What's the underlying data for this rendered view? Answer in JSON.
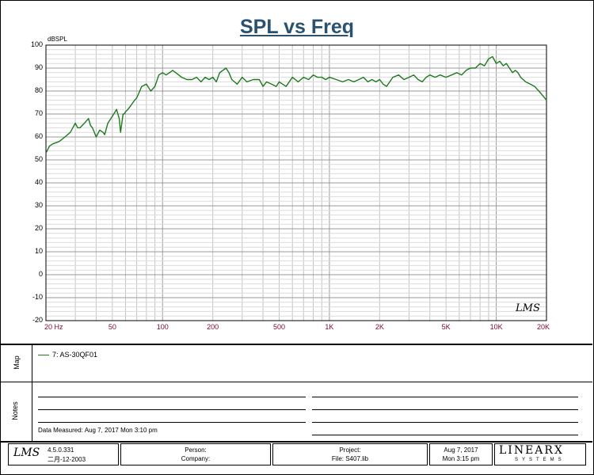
{
  "title": "SPL vs Freq",
  "watermark": "LMS",
  "chart_data": {
    "type": "line",
    "ylabel": "dBSPL",
    "xscale": "log",
    "xlim": [
      20,
      20000
    ],
    "ylim": [
      -20,
      100
    ],
    "yticks": [
      100,
      90,
      80,
      70,
      60,
      50,
      40,
      30,
      20,
      10,
      0,
      -10,
      -20
    ],
    "xticks": [
      {
        "value": 20,
        "label": "20  Hz"
      },
      {
        "value": 50,
        "label": "50"
      },
      {
        "value": 100,
        "label": "100"
      },
      {
        "value": 200,
        "label": "200"
      },
      {
        "value": 500,
        "label": "500"
      },
      {
        "value": 1000,
        "label": "1K"
      },
      {
        "value": 2000,
        "label": "2K"
      },
      {
        "value": 5000,
        "label": "5K"
      },
      {
        "value": 10000,
        "label": "10K"
      },
      {
        "value": 20000,
        "label": "20K"
      }
    ],
    "grid": true,
    "series": [
      {
        "name": "7: AS-30QF01",
        "color": "#1f7a1f",
        "x": [
          20,
          21,
          22,
          24,
          26,
          28,
          30,
          31,
          32,
          34,
          36,
          37,
          38,
          40,
          42,
          44,
          45,
          47,
          49,
          51,
          53,
          55,
          56,
          57,
          58,
          59,
          60,
          62,
          65,
          68,
          70,
          72,
          75,
          80,
          85,
          90,
          95,
          100,
          105,
          110,
          115,
          120,
          125,
          130,
          140,
          150,
          160,
          170,
          180,
          190,
          200,
          210,
          220,
          240,
          250,
          260,
          280,
          300,
          320,
          350,
          380,
          400,
          420,
          450,
          480,
          500,
          550,
          600,
          650,
          700,
          750,
          800,
          850,
          900,
          950,
          1000,
          1100,
          1200,
          1300,
          1400,
          1500,
          1600,
          1700,
          1800,
          1900,
          2000,
          2100,
          2200,
          2400,
          2600,
          2800,
          3000,
          3200,
          3400,
          3600,
          3800,
          4000,
          4300,
          4600,
          5000,
          5400,
          5800,
          6200,
          6600,
          7000,
          7500,
          8000,
          8500,
          9000,
          9500,
          10000,
          10500,
          11000,
          11500,
          12000,
          12500,
          13000,
          13500,
          14000,
          15000,
          16000,
          17000,
          18000,
          19000,
          20000
        ],
        "y": [
          53,
          56,
          57,
          58,
          60,
          62,
          66,
          64,
          64,
          66,
          68,
          65,
          64,
          60,
          63,
          62,
          61,
          66,
          68,
          70,
          72,
          68,
          62,
          66,
          70,
          70,
          71,
          72,
          74,
          76,
          77,
          79,
          82,
          83,
          80,
          82,
          87,
          88,
          87,
          88,
          89,
          88,
          87,
          86,
          85,
          85,
          86,
          84,
          86,
          85,
          86,
          84,
          88,
          90,
          88,
          85,
          83,
          86,
          84,
          85,
          85,
          82,
          84,
          83,
          82,
          84,
          82,
          86,
          84,
          86,
          85,
          87,
          86,
          86,
          85,
          86,
          85,
          84,
          85,
          84,
          85,
          86,
          84,
          85,
          84,
          85,
          83,
          82,
          86,
          87,
          85,
          86,
          87,
          85,
          84,
          86,
          87,
          86,
          87,
          86,
          87,
          88,
          87,
          89,
          90,
          90,
          92,
          91,
          94,
          95,
          92,
          93,
          91,
          92,
          90,
          88,
          89,
          88,
          86,
          84,
          83,
          82,
          80,
          78,
          76
        ]
      }
    ]
  },
  "map": {
    "label": "Map",
    "legend_text": "7: AS-30QF01"
  },
  "notes": {
    "label": "Notes",
    "measured": "Data Measured: Aug  7, 2017  Mon  3:10 pm"
  },
  "footer": {
    "version": "4.5.0.331",
    "date_code": "二月-12-2003",
    "person_label": "Person:",
    "company_label": "Company:",
    "project_label": "Project:",
    "file_label": "File: S407.lib",
    "date": "Aug  7, 2017",
    "time": "Mon  3:15 pm",
    "brand": "LINEARX",
    "brand_sub": "SYSTEMS"
  }
}
